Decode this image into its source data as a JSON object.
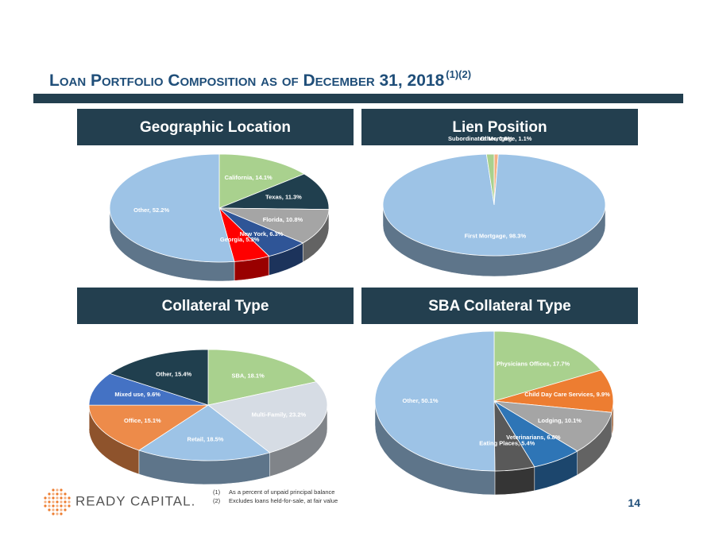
{
  "page": {
    "title": "Loan Portfolio Composition as of December 31, 2018",
    "title_note": "(1)(2)",
    "footnotes": [
      {
        "marker": "(1)",
        "text": "As a percent of unpaid principal balance"
      },
      {
        "marker": "(2)",
        "text": "Excludes loans held-for-sale, at fair value"
      }
    ],
    "logo": "READY CAPITAL.",
    "page_number": "14"
  },
  "chart_data": [
    {
      "type": "pie",
      "title": "Geographic Location",
      "values": [
        14.1,
        11.3,
        10.8,
        6.3,
        5.3,
        52.2
      ],
      "value_labels": [
        "California, 14.1%",
        "Texas, 11.3%",
        "Florida, 10.8%",
        "New York, 6.3%",
        "Georgia, 5.3%",
        "Other, 52.2%"
      ],
      "colors": [
        "#a9d18e",
        "#203f4e",
        "#a5a5a5",
        "#2f5597",
        "#ff0000",
        "#9dc3e6"
      ]
    },
    {
      "type": "pie",
      "title": "Lien Position",
      "values": [
        0.6,
        98.3,
        1.1
      ],
      "value_labels": [
        "Other, 0.6%",
        "First Mortgage, 98.3%",
        "Subordinated Mortgage, 1.1%"
      ],
      "colors": [
        "#f4b183",
        "#9dc3e6",
        "#a9d18e"
      ]
    },
    {
      "type": "pie",
      "title": "Collateral Type",
      "values": [
        18.1,
        23.2,
        18.5,
        15.1,
        9.6,
        15.4
      ],
      "value_labels": [
        "SBA, 18.1%",
        "Multi-Family, 23.2%",
        "Retail, 18.5%",
        "Office, 15.1%",
        "Mixed use, 9.6%",
        "Other, 15.4%"
      ],
      "colors": [
        "#a9d18e",
        "#d6dce4",
        "#9dc3e6",
        "#ed8b4a",
        "#4472c4",
        "#203f4e"
      ]
    },
    {
      "type": "pie",
      "title": "SBA Collateral Type",
      "values": [
        17.7,
        9.9,
        10.1,
        6.8,
        5.4,
        50.1
      ],
      "value_labels": [
        "Physicians Offices, 17.7%",
        "Child Day Care Services, 9.9%",
        "Lodging, 10.1%",
        "Veterinarians, 6.8%",
        "Eating Places, 5.4%",
        "Other, 50.1%"
      ],
      "colors": [
        "#a9d18e",
        "#ed7d31",
        "#a5a5a5",
        "#2e75b6",
        "#595959",
        "#9dc3e6"
      ]
    }
  ]
}
